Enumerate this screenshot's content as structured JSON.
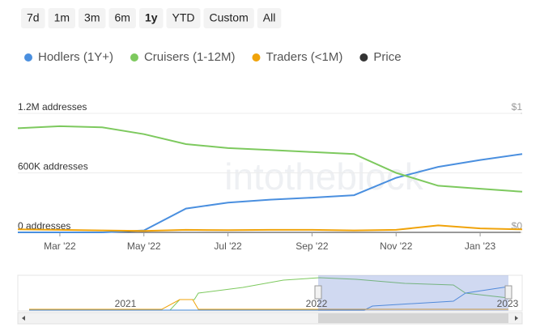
{
  "range_buttons": [
    "7d",
    "1m",
    "3m",
    "6m",
    "1y",
    "YTD",
    "Custom",
    "All"
  ],
  "selected_range_index": 4,
  "watermark": "intotheblock",
  "chart_data": {
    "type": "line",
    "x": [
      "2022-02",
      "2022-03",
      "2022-04",
      "2022-05",
      "2022-06",
      "2022-07",
      "2022-08",
      "2022-09",
      "2022-10",
      "2022-11",
      "2022-12",
      "2023-01",
      "2023-02"
    ],
    "xlim": [
      "2022-02",
      "2023-02"
    ],
    "xticks": [
      {
        "value": "2022-03",
        "label": "Mar '22"
      },
      {
        "value": "2022-05",
        "label": "May '22"
      },
      {
        "value": "2022-07",
        "label": "Jul '22"
      },
      {
        "value": "2022-09",
        "label": "Sep '22"
      },
      {
        "value": "2022-11",
        "label": "Nov '22"
      },
      {
        "value": "2023-01",
        "label": "Jan '23"
      }
    ],
    "ylim": [
      0,
      1200000
    ],
    "yticks": [
      {
        "value": 0,
        "label": "0 addresses"
      },
      {
        "value": 600000,
        "label": "600K addresses"
      },
      {
        "value": 1200000,
        "label": "1.2M addresses"
      }
    ],
    "y2lim": [
      0,
      1
    ],
    "y2ticks": [
      {
        "value": 0,
        "label": "$0"
      },
      {
        "value": 1,
        "label": "$1"
      }
    ],
    "grid": true,
    "series": [
      {
        "name": "Hodlers (1Y+)",
        "color": "#4a8fdf",
        "values": [
          0,
          0,
          0,
          20000,
          240000,
          300000,
          330000,
          350000,
          375000,
          550000,
          660000,
          730000,
          790000
        ]
      },
      {
        "name": "Cruisers (1-12M)",
        "color": "#7dc95e",
        "values": [
          1050000,
          1070000,
          1060000,
          990000,
          890000,
          850000,
          830000,
          810000,
          790000,
          600000,
          470000,
          440000,
          410000
        ]
      },
      {
        "name": "Traders (<1M)",
        "color": "#f0a30a",
        "values": [
          30000,
          25000,
          20000,
          15000,
          25000,
          22000,
          25000,
          25000,
          20000,
          25000,
          70000,
          40000,
          30000
        ]
      },
      {
        "name": "Price",
        "color": "#333333",
        "axis": "y2",
        "values": [
          null,
          null,
          null,
          null,
          null,
          null,
          null,
          null,
          null,
          null,
          null,
          null,
          null
        ]
      }
    ]
  },
  "navigator": {
    "labels": [
      "2021",
      "2022",
      "2023"
    ]
  }
}
